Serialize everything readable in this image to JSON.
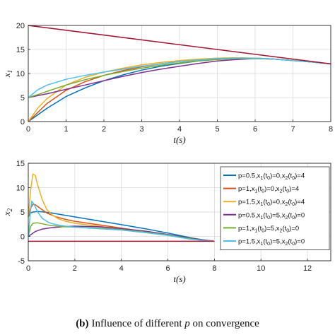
{
  "caption": {
    "bold_part": "(b)",
    "text_part": "Influence of different ",
    "var_part": "p",
    "end_part": " on convergence"
  },
  "chart_data": [
    {
      "type": "line",
      "xlabel": "t(s)",
      "ylabel": "x",
      "ylabel_sub": "1",
      "xlim": [
        0,
        8
      ],
      "ylim": [
        0,
        20
      ],
      "xticks": [
        0,
        1,
        2,
        3,
        4,
        5,
        6,
        7,
        8
      ],
      "yticks": [
        0,
        5,
        10,
        15,
        20
      ],
      "grid": true,
      "series": [
        {
          "color": "#0072BD",
          "x": [
            0,
            0.5,
            1,
            1.5,
            2,
            2.5,
            3,
            3.5,
            4,
            4.5,
            5,
            5.5,
            6,
            6.5,
            7,
            7.5,
            8
          ],
          "y": [
            0,
            2.8,
            5.2,
            7.0,
            8.5,
            9.7,
            10.7,
            11.5,
            12.1,
            12.6,
            13.0,
            13.2,
            13.2,
            13.0,
            12.7,
            12.4,
            12.0
          ]
        },
        {
          "color": "#D95319",
          "x": [
            0,
            0.5,
            1,
            1.5,
            2,
            2.5,
            3,
            3.5,
            4,
            4.5,
            5,
            5.5,
            6,
            6.5,
            7,
            7.5,
            8
          ],
          "y": [
            0,
            3.8,
            6.5,
            8.3,
            9.6,
            10.6,
            11.4,
            12.0,
            12.5,
            12.8,
            13.1,
            13.2,
            13.2,
            13.0,
            12.7,
            12.4,
            12.0
          ]
        },
        {
          "color": "#EDB120",
          "x": [
            0,
            0.25,
            0.5,
            1,
            1.5,
            2,
            2.5,
            3,
            3.5,
            4,
            4.5,
            5,
            5.5,
            6,
            6.5,
            7,
            7.5,
            8
          ],
          "y": [
            0,
            2.8,
            4.8,
            7.6,
            9.2,
            10.3,
            11.1,
            11.8,
            12.3,
            12.7,
            13.0,
            13.2,
            13.3,
            13.2,
            13.0,
            12.7,
            12.4,
            12.0
          ]
        },
        {
          "color": "#7E2F8E",
          "x": [
            0,
            0.5,
            1,
            1.5,
            2,
            2.5,
            3,
            3.5,
            4,
            4.5,
            5,
            5.5,
            6,
            6.5,
            7,
            7.5,
            8
          ],
          "y": [
            5,
            5.8,
            6.7,
            7.6,
            8.5,
            9.4,
            10.2,
            10.9,
            11.5,
            12.1,
            12.6,
            12.9,
            13.1,
            13.0,
            12.7,
            12.4,
            12.0
          ]
        },
        {
          "color": "#77AC30",
          "x": [
            0,
            0.25,
            0.5,
            1,
            1.5,
            2,
            2.5,
            3,
            3.5,
            4,
            4.5,
            5,
            5.5,
            6,
            6.5,
            7,
            7.5,
            8
          ],
          "y": [
            5,
            5.6,
            6.3,
            7.6,
            8.7,
            9.6,
            10.4,
            11.1,
            11.7,
            12.2,
            12.6,
            12.9,
            13.1,
            13.1,
            13.0,
            12.7,
            12.4,
            12.0
          ]
        },
        {
          "color": "#4DBEEE",
          "x": [
            0,
            0.25,
            0.5,
            1,
            1.5,
            2,
            2.5,
            3,
            3.5,
            4,
            4.5,
            5,
            5.5,
            6,
            6.5,
            7,
            7.5,
            8
          ],
          "y": [
            5,
            6.6,
            7.6,
            8.8,
            9.6,
            10.3,
            10.9,
            11.5,
            12.0,
            12.5,
            12.8,
            13.1,
            13.2,
            13.2,
            13.0,
            12.7,
            12.4,
            12.0
          ]
        },
        {
          "color": "#A2142F",
          "x": [
            0,
            8
          ],
          "y": [
            20,
            12
          ]
        }
      ]
    },
    {
      "type": "line",
      "xlabel": "t(s)",
      "ylabel": "x",
      "ylabel_sub": "2",
      "xlim": [
        0,
        13
      ],
      "ylim": [
        -5,
        15
      ],
      "xticks": [
        0,
        2,
        4,
        6,
        8,
        10,
        12
      ],
      "yticks": [
        -5,
        0,
        5,
        10,
        15
      ],
      "grid": true,
      "legend_placement": "right",
      "series": [
        {
          "name": "p=0.5,x1(t0)=0,x2(t0)=4",
          "color": "#0072BD",
          "x": [
            0,
            0.1,
            0.2,
            0.4,
            0.7,
            1,
            1.5,
            2,
            3,
            4,
            5,
            6,
            6.5,
            7,
            7.5,
            8
          ],
          "y": [
            4,
            4.8,
            5.0,
            5.1,
            5.0,
            4.8,
            4.4,
            4.0,
            3.2,
            2.4,
            1.6,
            0.7,
            0.2,
            -0.3,
            -0.7,
            -1
          ]
        },
        {
          "name": "p=1,x1(t0)=0,x2(t0)=4",
          "color": "#D95319",
          "x": [
            0,
            0.1,
            0.2,
            0.3,
            0.5,
            0.8,
            1.2,
            1.6,
            2,
            3,
            4,
            5,
            6,
            6.5,
            7,
            7.5,
            8
          ],
          "y": [
            4,
            5.8,
            6.6,
            6.5,
            5.8,
            4.8,
            4.0,
            3.5,
            3.1,
            2.4,
            1.7,
            1.0,
            0.3,
            -0.1,
            -0.5,
            -0.8,
            -1
          ]
        },
        {
          "name": "p=1.5,x1(t0)=0,x2(t0)=4",
          "color": "#EDB120",
          "x": [
            0,
            0.1,
            0.2,
            0.3,
            0.4,
            0.6,
            0.8,
            1,
            1.3,
            1.6,
            2,
            3,
            4,
            5,
            6,
            6.5,
            7,
            7.5,
            8
          ],
          "y": [
            4,
            9.5,
            12.8,
            12.5,
            10.6,
            7.5,
            5.5,
            4.5,
            3.6,
            3.1,
            2.7,
            2.1,
            1.6,
            1.0,
            0.3,
            -0.1,
            -0.5,
            -0.8,
            -1
          ]
        },
        {
          "name": "p=0.5,x1(t0)=5,x2(t0)=0",
          "color": "#7E2F8E",
          "x": [
            0,
            0.3,
            0.6,
            1,
            1.5,
            2,
            3,
            4,
            5,
            6,
            6.5,
            7,
            7.5,
            8
          ],
          "y": [
            0,
            1.0,
            1.5,
            1.8,
            2.0,
            2.1,
            2.0,
            1.6,
            1.1,
            0.4,
            0,
            -0.4,
            -0.7,
            -1
          ]
        },
        {
          "name": "p=1,x1(t0)=5,x2(t0)=0",
          "color": "#77AC30",
          "x": [
            0,
            0.1,
            0.2,
            0.4,
            0.7,
            1,
            1.5,
            2,
            3,
            4,
            5,
            6,
            6.5,
            7,
            7.5,
            8
          ],
          "y": [
            0,
            2.0,
            2.7,
            2.8,
            2.5,
            2.2,
            2.0,
            1.9,
            1.7,
            1.4,
            0.9,
            0.3,
            -0.1,
            -0.5,
            -0.8,
            -1
          ]
        },
        {
          "name": "p=1.5,x1(t0)=5,x2(t0)=0",
          "color": "#4DBEEE",
          "x": [
            0,
            0.1,
            0.15,
            0.25,
            0.4,
            0.6,
            0.9,
            1.2,
            1.6,
            2,
            3,
            4,
            5,
            6,
            6.5,
            7,
            7.5,
            8
          ],
          "y": [
            0,
            5.5,
            7.2,
            6.6,
            5.0,
            3.7,
            2.8,
            2.4,
            2.1,
            1.9,
            1.6,
            1.3,
            0.8,
            0.2,
            -0.2,
            -0.6,
            -0.8,
            -1
          ]
        },
        {
          "color": "#A2142F",
          "x": [
            0,
            8
          ],
          "y": [
            -1,
            -1
          ]
        }
      ],
      "legend": [
        {
          "color": "#0072BD",
          "p": "p=0.5",
          "a": "0",
          "b": "4"
        },
        {
          "color": "#D95319",
          "p": "p=1",
          "a": "0",
          "b": "4"
        },
        {
          "color": "#EDB120",
          "p": "p=1.5",
          "a": "0",
          "b": "4"
        },
        {
          "color": "#7E2F8E",
          "p": "p=0.5",
          "a": "5",
          "b": "0"
        },
        {
          "color": "#77AC30",
          "p": "p=1",
          "a": "5",
          "b": "0"
        },
        {
          "color": "#4DBEEE",
          "p": "p=1.5",
          "a": "5",
          "b": "0"
        }
      ]
    }
  ]
}
